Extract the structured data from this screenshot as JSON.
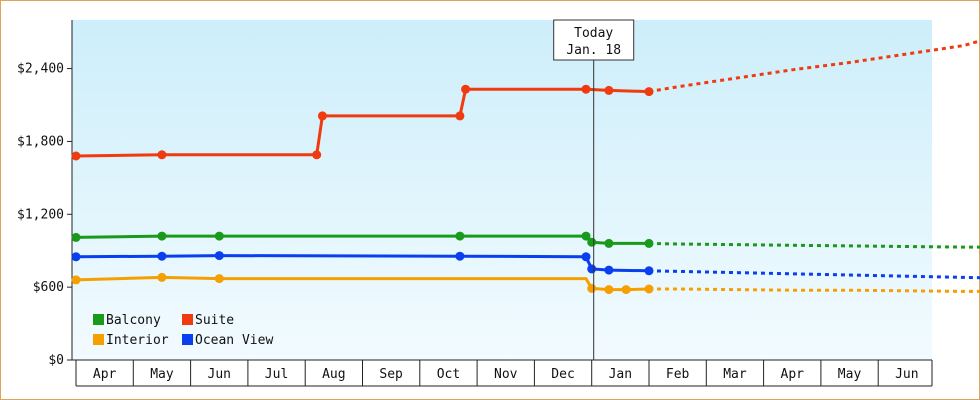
{
  "chart_data": {
    "type": "line",
    "title": "",
    "xlabel": "",
    "ylabel": "",
    "ylim": [
      0,
      2800
    ],
    "y_ticks": [
      "$0",
      "$600",
      "$1,200",
      "$1,800",
      "$2,400"
    ],
    "y_tick_values": [
      0,
      600,
      1200,
      1800,
      2400
    ],
    "x_tick_labels": [
      "Apr",
      "May",
      "Jun",
      "Jul",
      "Aug",
      "Sep",
      "Oct",
      "Nov",
      "Dec",
      "Jan",
      "Feb",
      "Mar",
      "Apr",
      "May",
      "Jun"
    ],
    "grid": false,
    "legend_position": "bottom-left",
    "background_gradient": [
      "#cdeefa",
      "#f2fbff"
    ],
    "today_marker": {
      "line1": "Today",
      "line2": "Jan. 18",
      "x_month": 9.0
    },
    "series": [
      {
        "name": "Balcony",
        "color": "#1a9a1a",
        "style": "step",
        "points": [
          [
            0.0,
            1010
          ],
          [
            1.5,
            1020
          ],
          [
            2.5,
            1020
          ],
          [
            6.7,
            1020
          ],
          [
            8.9,
            1020
          ],
          [
            9.0,
            970
          ],
          [
            9.3,
            960
          ],
          [
            10.0,
            960
          ]
        ],
        "markers": [
          [
            0.0,
            1010
          ],
          [
            1.5,
            1020
          ],
          [
            2.5,
            1020
          ],
          [
            6.7,
            1020
          ],
          [
            8.9,
            1020
          ],
          [
            9.0,
            970
          ],
          [
            9.3,
            960
          ],
          [
            10.0,
            960
          ]
        ],
        "forecast": [
          [
            10.0,
            960
          ],
          [
            10.5,
            955
          ],
          [
            11.5,
            950
          ],
          [
            12.5,
            945
          ],
          [
            13.5,
            940
          ],
          [
            14.5,
            935
          ],
          [
            15.5,
            930
          ],
          [
            16.0,
            930
          ]
        ]
      },
      {
        "name": "Suite",
        "color": "#f03a0f",
        "style": "step",
        "points": [
          [
            0.0,
            1680
          ],
          [
            1.5,
            1690
          ],
          [
            4.2,
            1690
          ],
          [
            4.3,
            2010
          ],
          [
            6.7,
            2010
          ],
          [
            6.8,
            2230
          ],
          [
            8.9,
            2230
          ],
          [
            9.3,
            2220
          ],
          [
            10.0,
            2210
          ]
        ],
        "markers": [
          [
            0.0,
            1680
          ],
          [
            1.5,
            1690
          ],
          [
            4.2,
            1690
          ],
          [
            4.3,
            2010
          ],
          [
            6.7,
            2010
          ],
          [
            6.8,
            2230
          ],
          [
            8.9,
            2230
          ],
          [
            9.3,
            2220
          ],
          [
            10.0,
            2210
          ]
        ],
        "forecast": [
          [
            10.0,
            2210
          ],
          [
            10.5,
            2250
          ],
          [
            11.5,
            2320
          ],
          [
            12.5,
            2390
          ],
          [
            13.5,
            2450
          ],
          [
            14.5,
            2520
          ],
          [
            15.5,
            2590
          ],
          [
            16.0,
            2660
          ]
        ]
      },
      {
        "name": "Interior",
        "color": "#f5a000",
        "style": "step",
        "points": [
          [
            0.0,
            660
          ],
          [
            1.5,
            680
          ],
          [
            2.5,
            670
          ],
          [
            8.9,
            670
          ],
          [
            9.0,
            590
          ],
          [
            9.3,
            580
          ],
          [
            9.6,
            580
          ],
          [
            10.0,
            585
          ]
        ],
        "markers": [
          [
            0.0,
            660
          ],
          [
            1.5,
            680
          ],
          [
            2.5,
            670
          ],
          [
            9.0,
            590
          ],
          [
            9.3,
            580
          ],
          [
            9.6,
            580
          ],
          [
            10.0,
            585
          ]
        ],
        "forecast": [
          [
            10.0,
            585
          ],
          [
            10.5,
            585
          ],
          [
            11.5,
            580
          ],
          [
            12.5,
            575
          ],
          [
            13.5,
            575
          ],
          [
            14.5,
            570
          ],
          [
            15.5,
            565
          ],
          [
            16.0,
            565
          ]
        ]
      },
      {
        "name": "Ocean View",
        "color": "#0a3ff0",
        "style": "step",
        "points": [
          [
            0.0,
            850
          ],
          [
            1.5,
            855
          ],
          [
            2.5,
            860
          ],
          [
            6.7,
            855
          ],
          [
            8.9,
            850
          ],
          [
            9.0,
            750
          ],
          [
            9.3,
            740
          ],
          [
            10.0,
            735
          ]
        ],
        "markers": [
          [
            0.0,
            850
          ],
          [
            1.5,
            855
          ],
          [
            2.5,
            860
          ],
          [
            6.7,
            855
          ],
          [
            8.9,
            850
          ],
          [
            9.0,
            750
          ],
          [
            9.3,
            740
          ],
          [
            10.0,
            735
          ]
        ],
        "forecast": [
          [
            10.0,
            735
          ],
          [
            10.5,
            730
          ],
          [
            11.5,
            720
          ],
          [
            12.5,
            710
          ],
          [
            13.5,
            700
          ],
          [
            14.5,
            690
          ],
          [
            15.5,
            680
          ],
          [
            16.0,
            675
          ]
        ]
      }
    ]
  },
  "legend": {
    "items": [
      {
        "name": "Balcony",
        "color": "#1a9a1a"
      },
      {
        "name": "Suite",
        "color": "#f03a0f"
      },
      {
        "name": "Interior",
        "color": "#f5a000"
      },
      {
        "name": "Ocean View",
        "color": "#0a3ff0"
      }
    ]
  }
}
